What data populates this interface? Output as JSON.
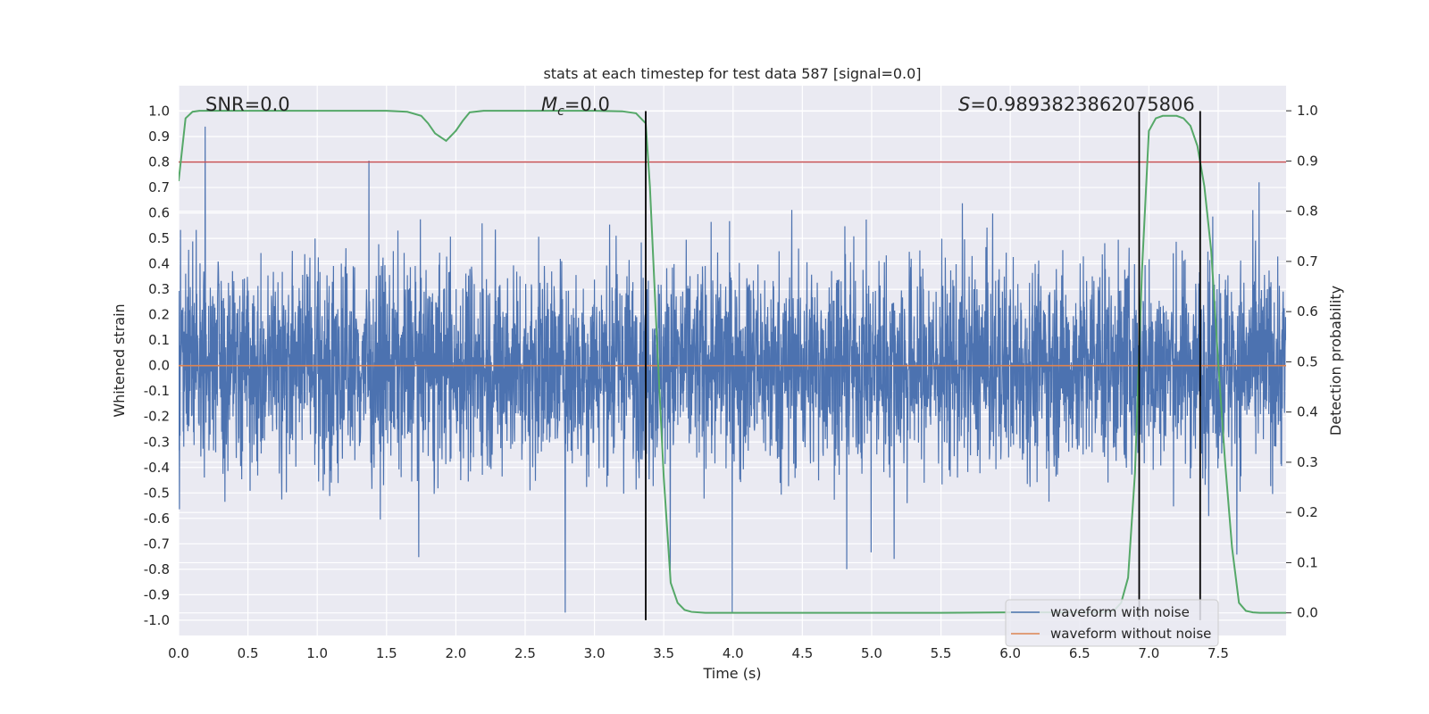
{
  "chart_data": {
    "type": "line",
    "title": "stats at each timestep for test data 587 [signal=0.0]",
    "xlabel": "Time (s)",
    "ylabel": "Whitened strain",
    "ylabel_right": "Detection probability",
    "xlim": [
      0.0,
      7.99
    ],
    "ylim": [
      -1.06,
      1.1
    ],
    "ylim_right": [
      -0.045,
      1.05
    ],
    "x_ticks": [
      "0.0",
      "0.5",
      "1.0",
      "1.5",
      "2.0",
      "2.5",
      "3.0",
      "3.5",
      "4.0",
      "4.5",
      "5.0",
      "5.5",
      "6.0",
      "6.5",
      "7.0",
      "7.5"
    ],
    "y_ticks": [
      "1.0",
      "0.9",
      "0.8",
      "0.7",
      "0.6",
      "0.5",
      "0.4",
      "0.3",
      "0.2",
      "0.1",
      "0.0",
      "-0.1",
      "-0.2",
      "-0.3",
      "-0.4",
      "-0.5",
      "-0.6",
      "-0.7",
      "-0.8",
      "-0.9",
      "-1.0"
    ],
    "y_ticks_right": [
      "1.0",
      "0.9",
      "0.8",
      "0.7",
      "0.6",
      "0.5",
      "0.4",
      "0.3",
      "0.2",
      "0.1",
      "0.0"
    ],
    "grid": true,
    "annotations": {
      "snr": "SNR=0.0",
      "mc_symbol": "M",
      "mc_sub": "c",
      "mc_value": "=0.0",
      "s_symbol": "S",
      "s_value": "=0.9893823862075806"
    },
    "legend": {
      "position": "lower-right",
      "entries": [
        {
          "label": "waveform with noise",
          "color": "#4c72b0"
        },
        {
          "label": "waveform without noise",
          "color": "#dd8452"
        }
      ]
    },
    "colors": {
      "noise": "#4c72b0",
      "clean": "#dd8452",
      "probability": "#55a868",
      "threshold": "#c44e52",
      "markers": "#000000",
      "panel": "#eaeaf2",
      "grid": "#ffffff"
    },
    "series": [
      {
        "name": "waveform with noise",
        "axis": "left",
        "description": "dense noisy strain samples between about -0.97 and 0.98",
        "sample_rate_hz": 512,
        "duration_s": 7.99,
        "envelope": [
          -0.97,
          0.98
        ]
      },
      {
        "name": "waveform without noise",
        "axis": "left",
        "x": [
          0.0,
          7.99
        ],
        "y": [
          0.0,
          0.0
        ]
      },
      {
        "name": "detection probability",
        "axis": "right",
        "x": [
          0.0,
          0.05,
          0.1,
          0.15,
          0.2,
          0.5,
          1.0,
          1.5,
          1.65,
          1.75,
          1.8,
          1.85,
          1.93,
          2.0,
          2.05,
          2.1,
          2.2,
          2.5,
          3.0,
          3.2,
          3.3,
          3.37,
          3.4,
          3.45,
          3.5,
          3.55,
          3.6,
          3.65,
          3.7,
          3.8,
          4.0,
          5.0,
          5.5,
          6.0,
          6.5,
          6.6,
          6.7,
          6.75,
          6.8,
          6.85,
          6.9,
          6.95,
          7.0,
          7.05,
          7.1,
          7.15,
          7.2,
          7.25,
          7.3,
          7.35,
          7.4,
          7.45,
          7.5,
          7.55,
          7.6,
          7.65,
          7.7,
          7.75,
          7.8,
          7.99
        ],
        "y": [
          0.86,
          0.985,
          0.998,
          1.0,
          1.0,
          1.0,
          1.0,
          1.0,
          0.998,
          0.99,
          0.975,
          0.955,
          0.94,
          0.96,
          0.98,
          0.997,
          1.0,
          1.0,
          1.0,
          0.999,
          0.995,
          0.975,
          0.85,
          0.55,
          0.27,
          0.06,
          0.02,
          0.006,
          0.002,
          0.0,
          0.0,
          0.0,
          0.0,
          0.001,
          0.001,
          0.001,
          0.002,
          0.005,
          0.02,
          0.07,
          0.28,
          0.68,
          0.96,
          0.985,
          0.99,
          0.99,
          0.99,
          0.985,
          0.97,
          0.93,
          0.85,
          0.72,
          0.5,
          0.3,
          0.13,
          0.02,
          0.004,
          0.001,
          0.0,
          0.0
        ]
      }
    ],
    "hlines": [
      {
        "y": 0.8,
        "axis": "left",
        "color": "#c44e52"
      }
    ],
    "vlines": [
      {
        "x": 3.37,
        "y_range": [
          -1.0,
          1.0
        ]
      },
      {
        "x": 6.93,
        "y_range": [
          -1.0,
          1.0
        ]
      },
      {
        "x": 7.37,
        "y_range": [
          -1.0,
          1.0
        ]
      }
    ]
  }
}
